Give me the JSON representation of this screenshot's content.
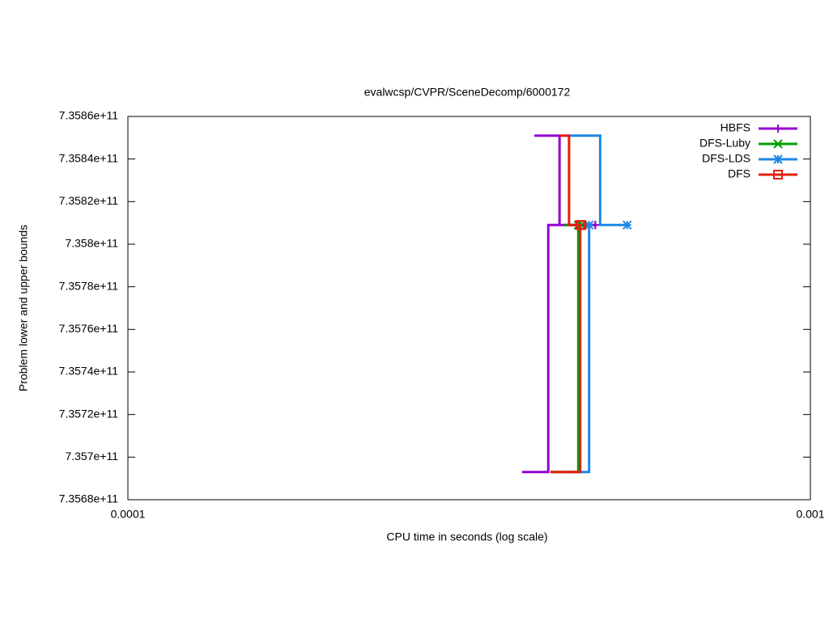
{
  "chart_data": {
    "type": "line",
    "title": "evalwcsp/CVPR/SceneDecomp/6000172",
    "xlabel": "CPU time in seconds (log scale)",
    "ylabel": "Problem lower and upper bounds",
    "xlog": true,
    "xlim": [
      0.0001,
      0.001
    ],
    "xticks": [
      0.0001,
      0.001
    ],
    "ylim": [
      735680000000,
      735860000000
    ],
    "yticks": [
      {
        "value": 735680000000,
        "label": "7.3568e+11"
      },
      {
        "value": 735700000000,
        "label": "7.357e+11"
      },
      {
        "value": 735720000000,
        "label": "7.3572e+11"
      },
      {
        "value": 735740000000,
        "label": "7.3574e+11"
      },
      {
        "value": 735760000000,
        "label": "7.3576e+11"
      },
      {
        "value": 735780000000,
        "label": "7.3578e+11"
      },
      {
        "value": 735800000000,
        "label": "7.358e+11"
      },
      {
        "value": 735820000000,
        "label": "7.3582e+11"
      },
      {
        "value": 735840000000,
        "label": "7.3584e+11"
      },
      {
        "value": 735860000000,
        "label": "7.3586e+11"
      }
    ],
    "legend": "top-right",
    "series": [
      {
        "name": "HBFS",
        "color": "#9400d3",
        "marker": "plus",
        "x": [
          0.000394,
          0.000429,
          0.000429,
          0.000484,
          null,
          0.000378,
          0.000413,
          0.000413,
          0.000484
        ],
        "values": [
          735851000000,
          735851000000,
          735809000000,
          735809000000,
          null,
          735693000000,
          735693000000,
          735809000000,
          735809000000
        ]
      },
      {
        "name": "DFS-Luby",
        "color": "#009e00",
        "marker": "cross",
        "x": [
          0.000436,
          0.000462,
          null,
          0.000416,
          0.000457,
          0.000457
        ],
        "values": [
          735809000000,
          735809000000,
          null,
          735693000000,
          735693000000,
          735809000000
        ]
      },
      {
        "name": "DFS-LDS",
        "color": "#1e88e5",
        "marker": "star",
        "x": [
          0.000436,
          0.000492,
          0.000492,
          0.000539,
          null,
          0.000443,
          0.000474,
          0.000474
        ],
        "values": [
          735851000000,
          735851000000,
          735809000000,
          735809000000,
          null,
          735693000000,
          735693000000,
          735809000000
        ]
      },
      {
        "name": "DFS",
        "color": "#e51e10",
        "marker": "square",
        "x": [
          0.000429,
          0.000443,
          0.000443,
          0.000462,
          null,
          0.000416,
          0.00046,
          0.00046
        ],
        "values": [
          735851000000,
          735851000000,
          735809000000,
          735809000000,
          null,
          735693000000,
          735693000000,
          735809000000
        ]
      }
    ]
  }
}
